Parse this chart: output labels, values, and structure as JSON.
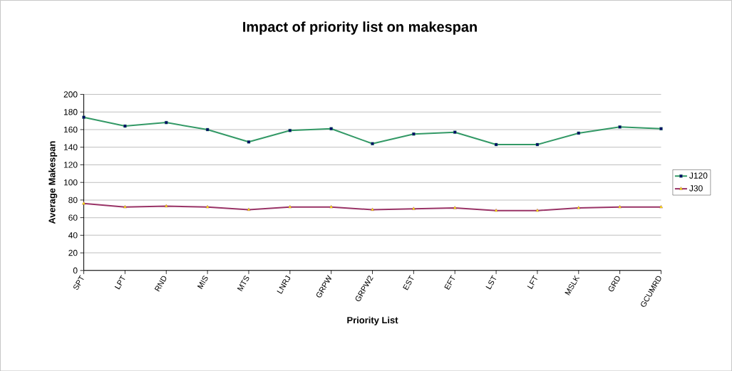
{
  "chart_data": {
    "type": "line",
    "title": "Impact of priority list on makespan",
    "xlabel": "Priority List",
    "ylabel": "Average Makespan",
    "categories": [
      "SPT",
      "LPT",
      "RND",
      "MIS",
      "MTS",
      "LNRJ",
      "GRPW",
      "GRPW2",
      "EST",
      "EFT",
      "LST",
      "LFT",
      "MSLK",
      "GRD",
      "GCUMRD"
    ],
    "series": [
      {
        "name": "J120",
        "color": "#339966",
        "marker": "square",
        "values": [
          174,
          164,
          168,
          160,
          146,
          159,
          161,
          144,
          155,
          157,
          143,
          143,
          156,
          163,
          161
        ]
      },
      {
        "name": "J30",
        "color": "#993366",
        "marker": "triangle",
        "values": [
          76,
          72,
          73,
          72,
          69,
          72,
          72,
          69,
          70,
          71,
          68,
          68,
          71,
          72,
          72
        ]
      }
    ],
    "ylim": [
      0,
      200
    ],
    "yticks": [
      0,
      20,
      40,
      60,
      80,
      100,
      120,
      140,
      160,
      180,
      200
    ],
    "grid": "y",
    "legend": "right"
  }
}
